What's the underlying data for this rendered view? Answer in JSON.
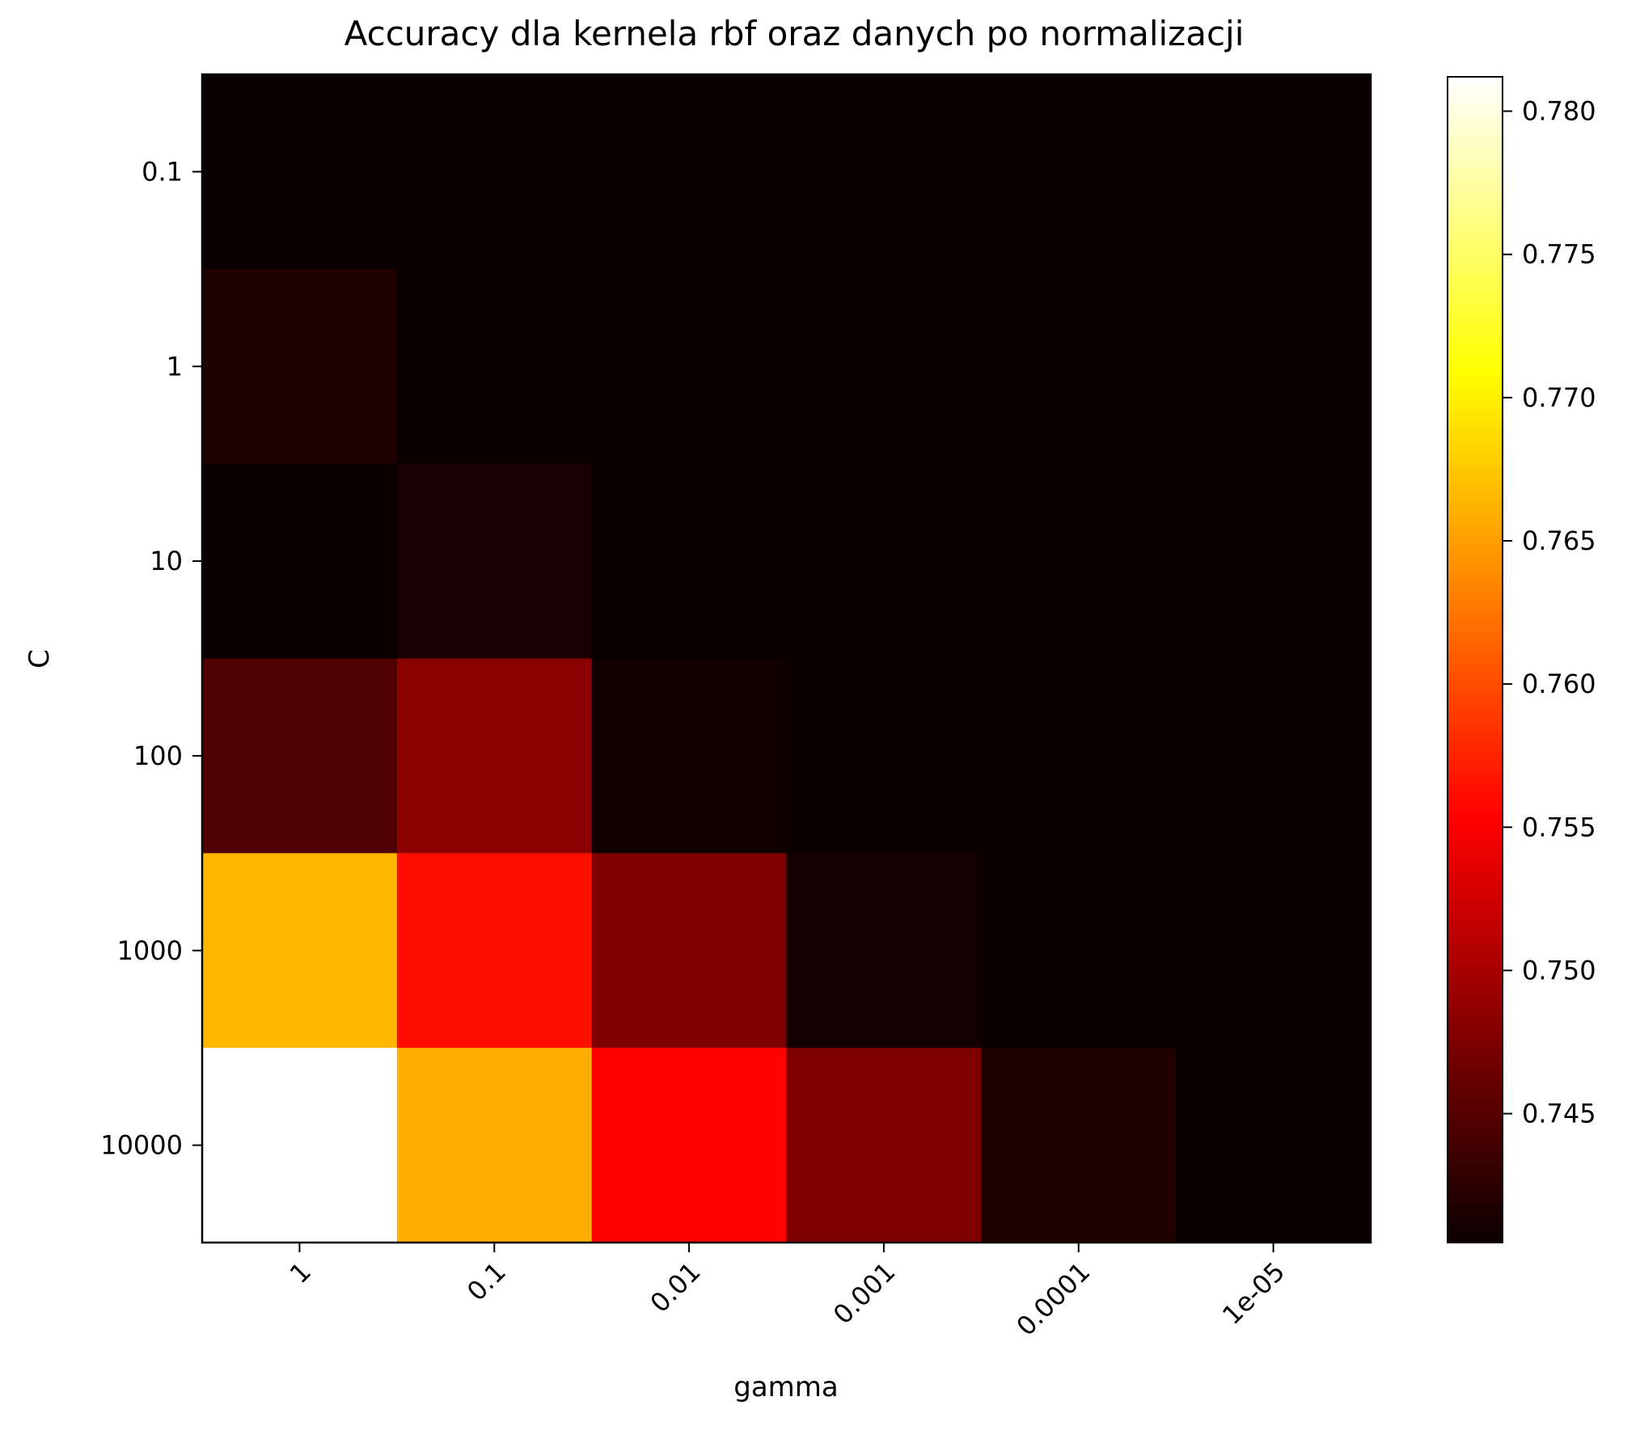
{
  "chart_data": {
    "type": "heatmap",
    "title": "Accuracy dla kernela rbf oraz danych po normalizacji",
    "xlabel": "gamma",
    "ylabel": "C",
    "x_categories": [
      "1",
      "0.1",
      "0.01",
      "0.001",
      "0.0001",
      "1e-05"
    ],
    "y_categories": [
      "0.1",
      "1",
      "10",
      "100",
      "1000",
      "10000"
    ],
    "values": [
      [
        0.7405,
        0.7405,
        0.7405,
        0.7405,
        0.7405,
        0.7405
      ],
      [
        0.7418,
        0.7405,
        0.7405,
        0.7405,
        0.7405,
        0.7405
      ],
      [
        0.7405,
        0.7414,
        0.7405,
        0.7405,
        0.7405,
        0.7405
      ],
      [
        0.7445,
        0.748,
        0.7408,
        0.7405,
        0.7405,
        0.7405
      ],
      [
        0.7665,
        0.7562,
        0.7472,
        0.741,
        0.7405,
        0.7405
      ],
      [
        0.7812,
        0.766,
        0.7555,
        0.7472,
        0.7418,
        0.7405
      ]
    ],
    "colormap": "hot",
    "colorbar": {
      "min": 0.7405,
      "max": 0.7812,
      "ticks": [
        0.745,
        0.75,
        0.755,
        0.76,
        0.765,
        0.77,
        0.775,
        0.78
      ],
      "tick_labels": [
        "0.745",
        "0.750",
        "0.755",
        "0.760",
        "0.765",
        "0.770",
        "0.775",
        "0.780"
      ]
    },
    "legend": "none",
    "grid": false
  }
}
